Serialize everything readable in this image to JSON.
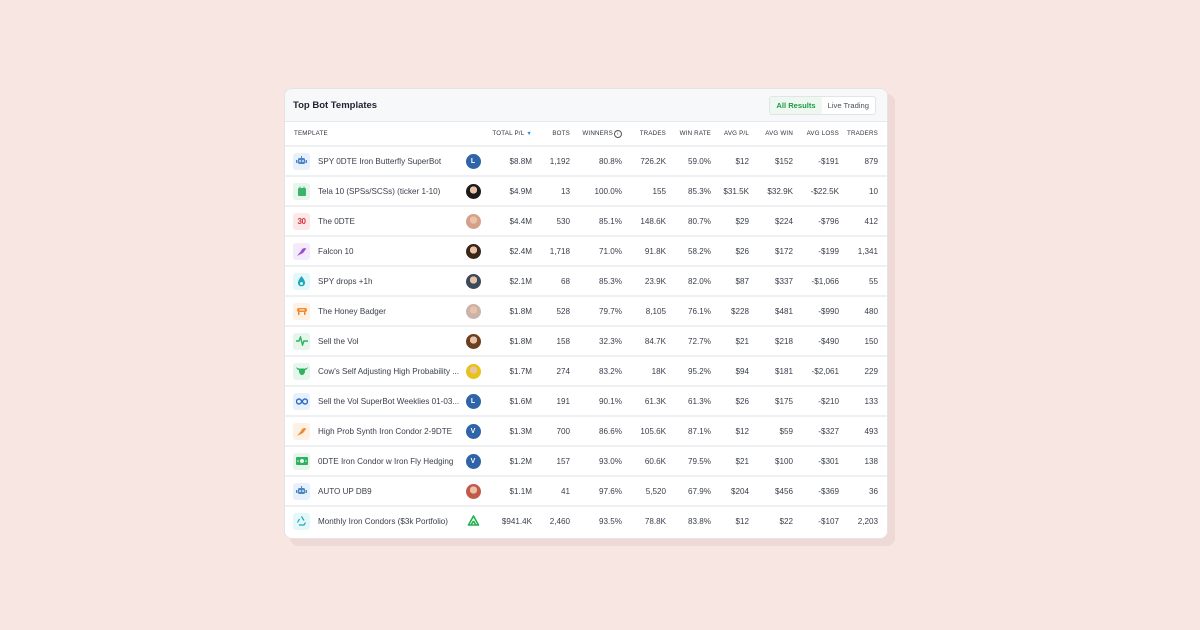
{
  "card": {
    "title": "Top Bot Templates",
    "tabs": [
      {
        "label": "All Results",
        "active": true
      },
      {
        "label": "Live Trading",
        "active": false
      }
    ]
  },
  "table": {
    "headers": {
      "template": "TEMPLATE",
      "total_pl": "TOTAL P/L",
      "bots": "BOTS",
      "winners": "WINNERS",
      "trades": "TRADES",
      "win_rate": "WIN RATE",
      "avg_pl": "AVG P/L",
      "avg_win": "AVG WIN",
      "avg_loss": "AVG LOSS",
      "traders": "TRADERS"
    },
    "sort_icon": "sort-desc-icon",
    "winners_info_icon": "info-icon",
    "rows": [
      {
        "icon": "robot-icon",
        "icon_color": "#4a86c8",
        "icon_bg": "#e8f1fb",
        "name": "SPY 0DTE Iron Butterfly SuperBot",
        "avatar": {
          "type": "letter",
          "text": "L",
          "color": "#2f64a8"
        },
        "total_pl": "$8.8M",
        "bots": "1,192",
        "winners": "80.8%",
        "trades": "726.2K",
        "win_rate": "59.0%",
        "avg_pl": "$12",
        "avg_win": "$152",
        "avg_loss": "-$191",
        "traders": "879"
      },
      {
        "icon": "calendar-icon",
        "icon_color": "#3db36a",
        "icon_bg": "#e7f6ec",
        "name": "Tela 10 (SPSs/SCSs) (ticker 1-10)",
        "avatar": {
          "type": "photo",
          "text": "",
          "color": "#1b1b1b"
        },
        "total_pl": "$4.9M",
        "bots": "13",
        "winners": "100.0%",
        "trades": "155",
        "win_rate": "85.3%",
        "avg_pl": "$31.5K",
        "avg_win": "$32.9K",
        "avg_loss": "-$22.5K",
        "traders": "10"
      },
      {
        "icon": "thirty-icon",
        "icon_color": "#d6343c",
        "icon_bg": "#fbe9ea",
        "name": "The 0DTE",
        "avatar": {
          "type": "photo",
          "text": "",
          "color": "#d4a08a"
        },
        "total_pl": "$4.4M",
        "bots": "530",
        "winners": "85.1%",
        "trades": "148.6K",
        "win_rate": "80.7%",
        "avg_pl": "$29",
        "avg_win": "$224",
        "avg_loss": "-$796",
        "traders": "412"
      },
      {
        "icon": "bird-icon",
        "icon_color": "#9b4fd0",
        "icon_bg": "#f3ebfb",
        "name": "Falcon 10",
        "avatar": {
          "type": "photo",
          "text": "",
          "color": "#3a2618"
        },
        "total_pl": "$2.4M",
        "bots": "1,718",
        "winners": "71.0%",
        "trades": "91.8K",
        "win_rate": "58.2%",
        "avg_pl": "$26",
        "avg_win": "$172",
        "avg_loss": "-$199",
        "traders": "1,341"
      },
      {
        "icon": "drop-icon",
        "icon_color": "#1fa7b8",
        "icon_bg": "#e4f7f9",
        "name": "SPY drops +1h",
        "avatar": {
          "type": "photo",
          "text": "",
          "color": "#3d4a5c"
        },
        "total_pl": "$2.1M",
        "bots": "68",
        "winners": "85.3%",
        "trades": "23.9K",
        "win_rate": "82.0%",
        "avg_pl": "$87",
        "avg_win": "$337",
        "avg_loss": "-$1,066",
        "traders": "55"
      },
      {
        "icon": "badger-icon",
        "icon_color": "#f08a2c",
        "icon_bg": "#fdf0e4",
        "name": "The Honey Badger",
        "avatar": {
          "type": "photo",
          "text": "",
          "color": "#c9b3ab"
        },
        "total_pl": "$1.8M",
        "bots": "528",
        "winners": "79.7%",
        "trades": "8,105",
        "win_rate": "76.1%",
        "avg_pl": "$228",
        "avg_win": "$481",
        "avg_loss": "-$990",
        "traders": "480"
      },
      {
        "icon": "pulse-icon",
        "icon_color": "#2fb25f",
        "icon_bg": "#e7f6ec",
        "name": "Sell the Vol",
        "avatar": {
          "type": "photo",
          "text": "",
          "color": "#6a4020"
        },
        "total_pl": "$1.8M",
        "bots": "158",
        "winners": "32.3%",
        "trades": "84.7K",
        "win_rate": "72.7%",
        "avg_pl": "$21",
        "avg_win": "$218",
        "avg_loss": "-$490",
        "traders": "150"
      },
      {
        "icon": "bull-icon",
        "icon_color": "#2fb25f",
        "icon_bg": "#e7f6ec",
        "name": "Cow's Self Adjusting High Probability ...",
        "avatar": {
          "type": "photo",
          "text": "",
          "color": "#e6c21a"
        },
        "total_pl": "$1.7M",
        "bots": "274",
        "winners": "83.2%",
        "trades": "18K",
        "win_rate": "95.2%",
        "avg_pl": "$94",
        "avg_win": "$181",
        "avg_loss": "-$2,061",
        "traders": "229"
      },
      {
        "icon": "infinity-icon",
        "icon_color": "#2f6fc8",
        "icon_bg": "#e8f1fb",
        "name": "Sell the Vol SuperBot Weeklies 01-03...",
        "avatar": {
          "type": "letter",
          "text": "L",
          "color": "#2f64a8"
        },
        "total_pl": "$1.6M",
        "bots": "191",
        "winners": "90.1%",
        "trades": "61.3K",
        "win_rate": "61.3%",
        "avg_pl": "$26",
        "avg_win": "$175",
        "avg_loss": "-$210",
        "traders": "133"
      },
      {
        "icon": "bird-icon",
        "icon_color": "#f08a2c",
        "icon_bg": "#fdf0e4",
        "name": "High Prob Synth Iron Condor 2-9DTE",
        "avatar": {
          "type": "letter",
          "text": "V",
          "color": "#2f64a8"
        },
        "total_pl": "$1.3M",
        "bots": "700",
        "winners": "86.6%",
        "trades": "105.6K",
        "win_rate": "87.1%",
        "avg_pl": "$12",
        "avg_win": "$59",
        "avg_loss": "-$327",
        "traders": "493"
      },
      {
        "icon": "money-icon",
        "icon_color": "#2fb25f",
        "icon_bg": "#e7f6ec",
        "name": "0DTE Iron Condor w Iron Fly Hedging",
        "avatar": {
          "type": "letter",
          "text": "V",
          "color": "#2f64a8"
        },
        "total_pl": "$1.2M",
        "bots": "157",
        "winners": "93.0%",
        "trades": "60.6K",
        "win_rate": "79.5%",
        "avg_pl": "$21",
        "avg_win": "$100",
        "avg_loss": "-$301",
        "traders": "138"
      },
      {
        "icon": "robot-icon",
        "icon_color": "#4a86c8",
        "icon_bg": "#e8f1fb",
        "name": "AUTO UP DB9",
        "avatar": {
          "type": "photo",
          "text": "",
          "color": "#c25a4a"
        },
        "total_pl": "$1.1M",
        "bots": "41",
        "winners": "97.6%",
        "trades": "5,520",
        "win_rate": "67.9%",
        "avg_pl": "$204",
        "avg_win": "$456",
        "avg_loss": "-$369",
        "traders": "36"
      },
      {
        "icon": "recycle-icon",
        "icon_color": "#1fa7b8",
        "icon_bg": "#e4f7f9",
        "name": "Monthly Iron Condors ($3k Portfolio)",
        "avatar": {
          "type": "logo",
          "text": "",
          "color": "#1fb24a"
        },
        "total_pl": "$941.4K",
        "bots": "2,460",
        "winners": "93.5%",
        "trades": "78.8K",
        "win_rate": "83.8%",
        "avg_pl": "$12",
        "avg_win": "$22",
        "avg_loss": "-$107",
        "traders": "2,203"
      }
    ]
  }
}
